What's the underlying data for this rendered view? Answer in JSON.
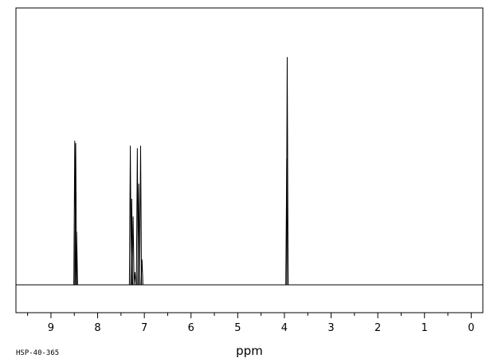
{
  "chart_data": {
    "type": "line",
    "xlabel": "ppm",
    "ylabel": "",
    "spectrum_code": "HSP-40-365",
    "x_reversed": true,
    "xlim": [
      9.75,
      -0.25
    ],
    "ylim": [
      -0.1,
      1.0
    ],
    "grid": false,
    "tick_labels": [
      "9",
      "8",
      "7",
      "6",
      "5",
      "4",
      "3",
      "2",
      "1",
      "0"
    ],
    "major_ticks": [
      9,
      8,
      7,
      6,
      5,
      4,
      3,
      2,
      1,
      0
    ],
    "minor_ticks": [
      9.5,
      8.5,
      7.5,
      6.5,
      5.5,
      4.5,
      3.5,
      2.5,
      1.5,
      0.5
    ],
    "peaks": [
      {
        "ppm": 8.49,
        "height": 0.57
      },
      {
        "ppm": 8.47,
        "height": 0.56
      },
      {
        "ppm": 8.45,
        "height": 0.21
      },
      {
        "ppm": 7.3,
        "height": 0.55
      },
      {
        "ppm": 7.27,
        "height": 0.34
      },
      {
        "ppm": 7.24,
        "height": 0.27
      },
      {
        "ppm": 7.2,
        "height": 0.05
      },
      {
        "ppm": 7.15,
        "height": 0.54
      },
      {
        "ppm": 7.12,
        "height": 0.4
      },
      {
        "ppm": 7.08,
        "height": 0.55
      },
      {
        "ppm": 7.05,
        "height": 0.1
      },
      {
        "ppm": 3.94,
        "height": 0.9
      },
      {
        "ppm": 3.95,
        "height": 0.5
      }
    ]
  }
}
